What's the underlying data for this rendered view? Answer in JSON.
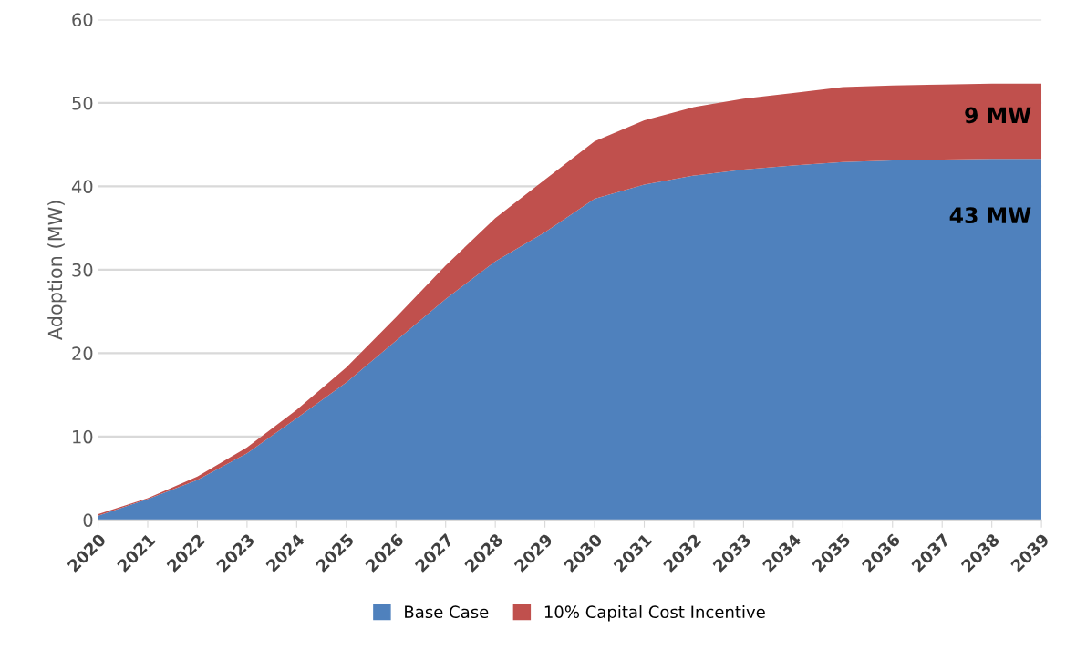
{
  "chart_data": {
    "type": "area",
    "stacked": true,
    "ylabel": "Adoption (MW)",
    "categories": [
      "2020",
      "2021",
      "2022",
      "2023",
      "2024",
      "2025",
      "2026",
      "2027",
      "2028",
      "2029",
      "2030",
      "2031",
      "2032",
      "2033",
      "2034",
      "2035",
      "2036",
      "2037",
      "2038",
      "2039"
    ],
    "series": [
      {
        "name": "Base Case",
        "color": "#4f81bd",
        "values": [
          0.5,
          2.5,
          4.8,
          8,
          12.2,
          16.5,
          21.5,
          26.5,
          31,
          34.5,
          38.5,
          40.2,
          41.3,
          42,
          42.5,
          42.9,
          43.1,
          43.2,
          43.3,
          43.3
        ]
      },
      {
        "name": "10% Capital Cost Incentive",
        "color": "#c0504d",
        "values": [
          0.2,
          0.1,
          0.4,
          0.7,
          1.0,
          1.8,
          2.8,
          4.0,
          5.2,
          6.3,
          6.9,
          7.7,
          8.2,
          8.5,
          8.7,
          9.0,
          9.0,
          9.0,
          9.0,
          9.0
        ]
      }
    ],
    "ylim": [
      0,
      60
    ],
    "yticks": [
      0,
      10,
      20,
      30,
      40,
      50,
      60
    ],
    "grid": "y",
    "legend": "bottom",
    "annotations": [
      "9 MW",
      "43 MW"
    ]
  }
}
